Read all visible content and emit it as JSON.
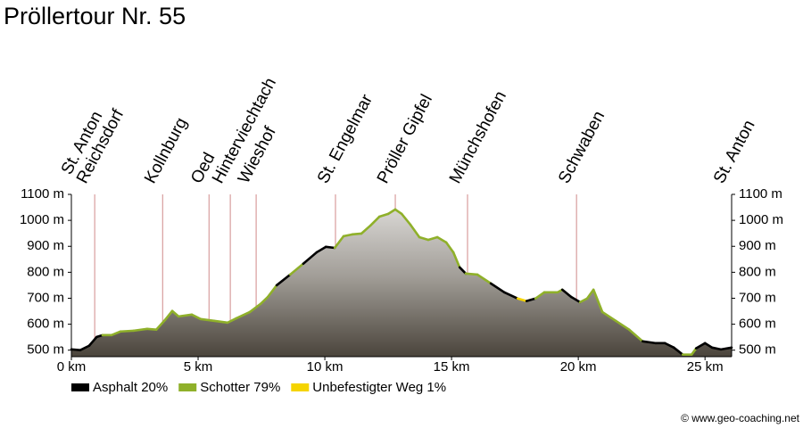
{
  "chart_data": {
    "type": "elevation-profile",
    "title": "Pröllertour Nr. 55",
    "x": [
      0,
      0.35,
      0.7,
      1.0,
      1.23,
      1.58,
      1.94,
      2.46,
      2.99,
      3.35,
      3.7,
      3.98,
      4.23,
      4.75,
      5.1,
      5.63,
      6.16,
      6.51,
      7.04,
      7.46,
      7.75,
      8.1,
      8.63,
      9.15,
      9.68,
      10.04,
      10.39,
      10.74,
      11.09,
      11.44,
      11.8,
      12.15,
      12.5,
      12.78,
      13.03,
      13.38,
      13.73,
      14.08,
      14.44,
      14.79,
      15.07,
      15.32,
      15.56,
      16.02,
      16.55,
      17.08,
      17.61,
      17.96,
      18.31,
      18.66,
      19.19,
      19.37,
      19.72,
      20.07,
      20.35,
      20.6,
      20.95,
      21.48,
      22.01,
      22.54,
      23.06,
      23.42,
      23.77,
      24.12,
      24.47,
      24.65,
      25.0,
      25.28,
      25.63,
      26.05
    ],
    "values": [
      503,
      500,
      517,
      551,
      558,
      558,
      572,
      575,
      582,
      579,
      617,
      651,
      630,
      637,
      620,
      613,
      606,
      623,
      647,
      678,
      705,
      750,
      791,
      833,
      877,
      898,
      894,
      939,
      946,
      949,
      980,
      1014,
      1025,
      1042,
      1025,
      983,
      935,
      925,
      935,
      915,
      877,
      819,
      795,
      791,
      757,
      723,
      699,
      689,
      699,
      723,
      723,
      733,
      705,
      685,
      699,
      733,
      647,
      613,
      579,
      534,
      527,
      527,
      510,
      483,
      483,
      507,
      527,
      510,
      503,
      510
    ],
    "surface": [
      0,
      0,
      0,
      0,
      0,
      1,
      1,
      1,
      1,
      1,
      1,
      1,
      1,
      1,
      1,
      1,
      1,
      1,
      1,
      1,
      1,
      1,
      0,
      1,
      0,
      0,
      0,
      1,
      1,
      1,
      1,
      1,
      1,
      1,
      1,
      1,
      1,
      1,
      1,
      1,
      1,
      1,
      0,
      1,
      1,
      0,
      0,
      2,
      0,
      1,
      1,
      1,
      0,
      0,
      1,
      1,
      1,
      1,
      1,
      1,
      0,
      0,
      0,
      0,
      1,
      1,
      0,
      0,
      0,
      0
    ],
    "series": [
      {
        "name": "Asphalt 20%",
        "color": "#000000"
      },
      {
        "name": "Schotter 79%",
        "color": "#8fb02a"
      },
      {
        "name": "Unbefestigter Weg 1%",
        "color": "#f5d400"
      }
    ],
    "waypoints": [
      {
        "label": [
          "St. Anton",
          "Reichsdorf"
        ],
        "x": 0.92
      },
      {
        "label": [
          "Kollnburg"
        ],
        "x": 3.6
      },
      {
        "label": [
          "Oed"
        ],
        "x": 5.43
      },
      {
        "label": [
          "Hinterviechtach"
        ],
        "x": 6.27
      },
      {
        "label": [
          "Wieshof"
        ],
        "x": 7.29
      },
      {
        "label": [
          "St. Engelmar"
        ],
        "x": 10.42
      },
      {
        "label": [
          "Pröller Gipfel"
        ],
        "x": 12.78
      },
      {
        "label": [
          "Münchshofen"
        ],
        "x": 15.63
      },
      {
        "label": [
          "Schwaben"
        ],
        "x": 19.93
      },
      {
        "label": [
          "St. Anton"
        ],
        "x": 26.05
      }
    ],
    "xlim": [
      0,
      26.05
    ],
    "ylim": [
      475,
      1100
    ],
    "xticks": [
      {
        "value": 0,
        "label": "0 km"
      },
      {
        "value": 5,
        "label": "5 km"
      },
      {
        "value": 10,
        "label": "10 km"
      },
      {
        "value": 15,
        "label": "15 km"
      },
      {
        "value": 20,
        "label": "20 km"
      },
      {
        "value": 25,
        "label": "25 km"
      }
    ],
    "yticks": [
      {
        "value": 500,
        "label": "500 m"
      },
      {
        "value": 600,
        "label": "600 m"
      },
      {
        "value": 700,
        "label": "700 m"
      },
      {
        "value": 800,
        "label": "800 m"
      },
      {
        "value": 900,
        "label": "900 m"
      },
      {
        "value": 1000,
        "label": "1000 m"
      },
      {
        "value": 1100,
        "label": "1100 m"
      }
    ],
    "copyright": "© www.geo-coaching.net"
  }
}
